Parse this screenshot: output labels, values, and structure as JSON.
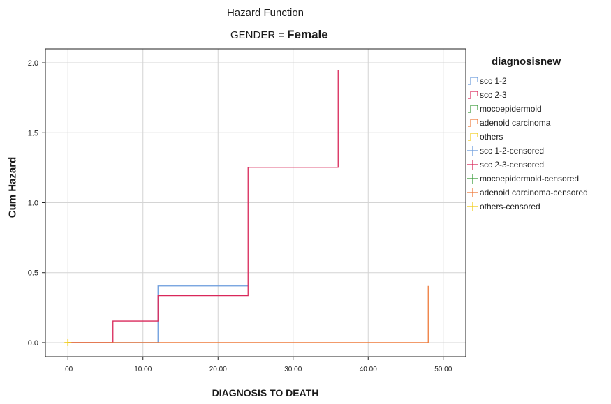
{
  "chart_data": {
    "type": "line",
    "title": "Hazard Function",
    "subtitle_label": "GENDER =",
    "subtitle_value": "Female",
    "xlabel": "DIAGNOSIS TO DEATH",
    "ylabel": "Cum Hazard",
    "xlim": [
      -3,
      53
    ],
    "ylim": [
      -0.1,
      2.1
    ],
    "x_ticks": [
      0,
      10,
      20,
      30,
      40,
      50
    ],
    "x_tick_labels": [
      ".00",
      "10.00",
      "20.00",
      "30.00",
      "40.00",
      "50.00"
    ],
    "y_ticks": [
      0,
      0.5,
      1,
      1.5,
      2
    ],
    "y_tick_labels": [
      "0.0",
      "0.5",
      "1.0",
      "1.5",
      "2.0"
    ],
    "grid": true,
    "legend_title": "diagnosisnew",
    "legend_position": "right",
    "series": [
      {
        "name": "scc 1-2",
        "color": "#6a9bdc",
        "step": true,
        "x": [
          0,
          12,
          12,
          24
        ],
        "y": [
          0,
          0,
          0.405,
          0.405
        ]
      },
      {
        "name": "scc 2-3",
        "color": "#d9285a",
        "step": true,
        "x": [
          0,
          6,
          6,
          12,
          12,
          24,
          24,
          36,
          36
        ],
        "y": [
          0,
          0,
          0.154,
          0.154,
          0.336,
          0.336,
          1.253,
          1.253,
          1.946
        ]
      },
      {
        "name": "mocoepidermoid",
        "color": "#3a9a3a",
        "step": true,
        "x": [],
        "y": []
      },
      {
        "name": "adenoid carcinoma",
        "color": "#ee7a3a",
        "step": true,
        "x": [
          0,
          48,
          48
        ],
        "y": [
          0,
          0,
          0.405
        ]
      },
      {
        "name": "others",
        "color": "#f0cc1a",
        "step": true,
        "x": [
          0
        ],
        "y": [
          0
        ]
      }
    ],
    "censored": [
      {
        "name": "scc 1-2-censored",
        "color": "#6a9bdc",
        "x": [],
        "y": []
      },
      {
        "name": "scc 2-3-censored",
        "color": "#d9285a",
        "x": [],
        "y": []
      },
      {
        "name": "mocoepidermoid-censored",
        "color": "#3a9a3a",
        "x": [],
        "y": []
      },
      {
        "name": "adenoid carcinoma-censored",
        "color": "#ee7a3a",
        "x": [],
        "y": []
      },
      {
        "name": "others-censored",
        "color": "#f0cc1a",
        "x": [
          0
        ],
        "y": [
          0
        ]
      }
    ]
  }
}
